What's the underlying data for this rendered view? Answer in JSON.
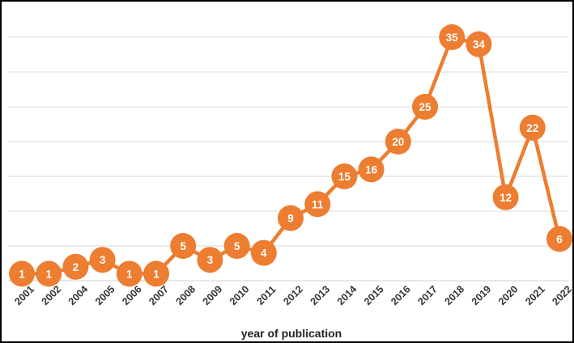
{
  "chart_data": {
    "type": "line",
    "title": "",
    "xlabel": "year of publication",
    "ylabel": "",
    "categories": [
      "2001",
      "2002",
      "2004",
      "2005",
      "2006",
      "2007",
      "2008",
      "2009",
      "2010",
      "2011",
      "2012",
      "2013",
      "2014",
      "2015",
      "2016",
      "2017",
      "2018",
      "2019",
      "2020",
      "2021",
      "2022"
    ],
    "series": [
      {
        "values": [
          1,
          1,
          2,
          3,
          1,
          1,
          5,
          3,
          5,
          4,
          9,
          11,
          15,
          16,
          20,
          25,
          35,
          34,
          12,
          22,
          6
        ]
      }
    ],
    "ylim": [
      0,
      40
    ],
    "grid": true,
    "data_labels": true,
    "legend": false,
    "colors": {
      "series": "#ED7D31",
      "grid": "#D9D9D9",
      "label_text": "#FFFFFF",
      "frame": "#000000"
    }
  }
}
